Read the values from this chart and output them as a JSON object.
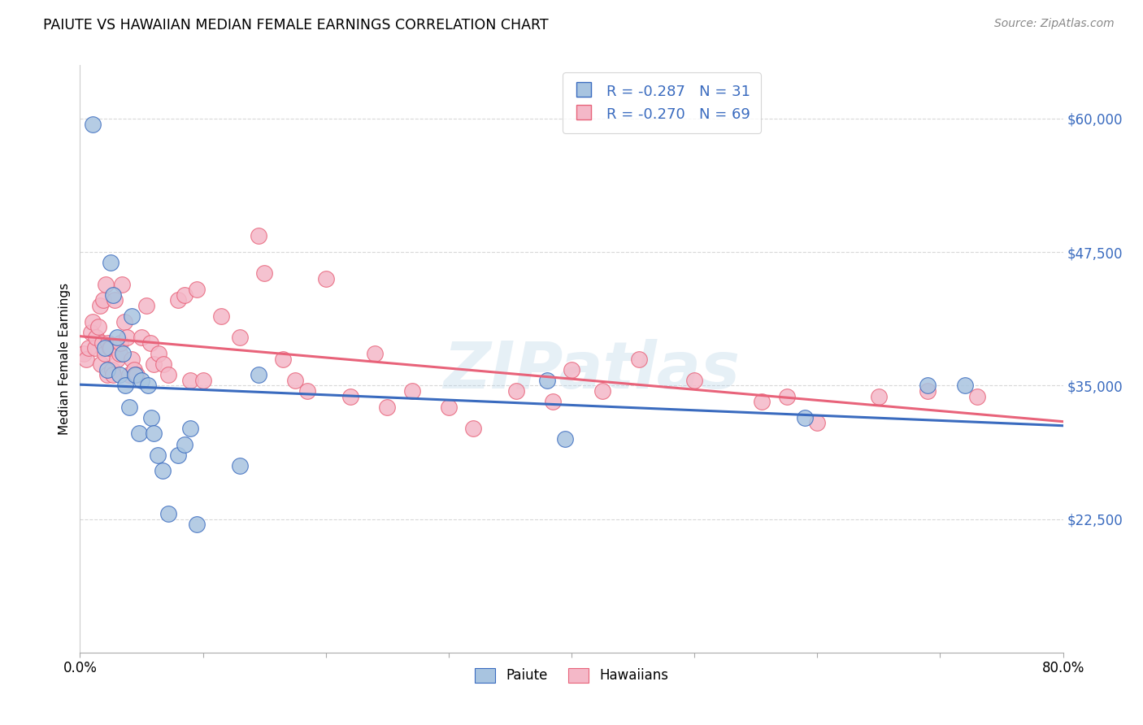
{
  "title": "PAIUTE VS HAWAIIAN MEDIAN FEMALE EARNINGS CORRELATION CHART",
  "source": "Source: ZipAtlas.com",
  "ylabel": "Median Female Earnings",
  "xlim": [
    0.0,
    0.8
  ],
  "ylim": [
    10000,
    65000
  ],
  "yticks": [
    22500,
    35000,
    47500,
    60000
  ],
  "yticklabels": [
    "$22,500",
    "$35,000",
    "$47,500",
    "$60,000"
  ],
  "paiute_color": "#a8c4e0",
  "hawaiian_color": "#f4b8c8",
  "paiute_line_color": "#3a6bbf",
  "hawaiian_line_color": "#e8637a",
  "legend_label_paiute": "Paiute",
  "legend_label_hawaiian": "Hawaiians",
  "paiute_R": -0.287,
  "paiute_N": 31,
  "hawaiian_R": -0.27,
  "hawaiian_N": 69,
  "background_color": "#ffffff",
  "grid_color": "#d8d8d8",
  "watermark": "ZIPatlas",
  "paiute_x": [
    0.01,
    0.02,
    0.022,
    0.025,
    0.027,
    0.03,
    0.032,
    0.035,
    0.037,
    0.04,
    0.042,
    0.045,
    0.048,
    0.05,
    0.055,
    0.058,
    0.06,
    0.063,
    0.067,
    0.072,
    0.08,
    0.085,
    0.09,
    0.095,
    0.13,
    0.145,
    0.38,
    0.395,
    0.59,
    0.69,
    0.72
  ],
  "paiute_y": [
    59500,
    38500,
    36500,
    46500,
    43500,
    39500,
    36000,
    38000,
    35000,
    33000,
    41500,
    36000,
    30500,
    35500,
    35000,
    32000,
    30500,
    28500,
    27000,
    23000,
    28500,
    29500,
    31000,
    22000,
    27500,
    36000,
    35500,
    30000,
    32000,
    35000,
    35000
  ],
  "hawaiian_x": [
    0.003,
    0.005,
    0.007,
    0.009,
    0.01,
    0.012,
    0.013,
    0.015,
    0.016,
    0.017,
    0.018,
    0.019,
    0.02,
    0.021,
    0.022,
    0.023,
    0.024,
    0.025,
    0.026,
    0.027,
    0.028,
    0.03,
    0.032,
    0.033,
    0.034,
    0.036,
    0.038,
    0.04,
    0.042,
    0.044,
    0.046,
    0.05,
    0.054,
    0.057,
    0.06,
    0.064,
    0.068,
    0.072,
    0.08,
    0.085,
    0.09,
    0.095,
    0.1,
    0.115,
    0.13,
    0.145,
    0.15,
    0.165,
    0.175,
    0.185,
    0.2,
    0.22,
    0.24,
    0.25,
    0.27,
    0.3,
    0.32,
    0.355,
    0.385,
    0.4,
    0.425,
    0.455,
    0.5,
    0.555,
    0.575,
    0.6,
    0.65,
    0.69,
    0.73
  ],
  "hawaiian_y": [
    38000,
    37500,
    38500,
    40000,
    41000,
    38500,
    39500,
    40500,
    42500,
    37000,
    39000,
    43000,
    38000,
    44500,
    36000,
    39000,
    38500,
    38500,
    36500,
    36000,
    43000,
    37500,
    38000,
    39000,
    44500,
    41000,
    39500,
    36000,
    37500,
    36500,
    36000,
    39500,
    42500,
    39000,
    37000,
    38000,
    37000,
    36000,
    43000,
    43500,
    35500,
    44000,
    35500,
    41500,
    39500,
    49000,
    45500,
    37500,
    35500,
    34500,
    45000,
    34000,
    38000,
    33000,
    34500,
    33000,
    31000,
    34500,
    33500,
    36500,
    34500,
    37500,
    35500,
    33500,
    34000,
    31500,
    34000,
    34500,
    34000
  ]
}
